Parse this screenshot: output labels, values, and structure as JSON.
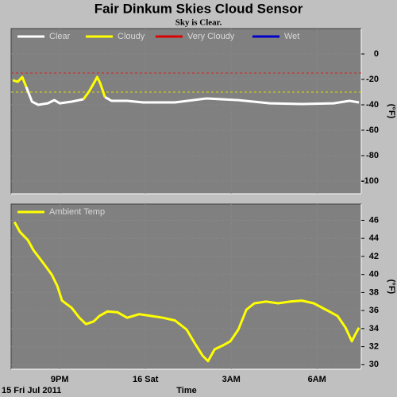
{
  "chart_data": [
    {
      "type": "line",
      "title": "Fair Dinkum Skies Cloud Sensor",
      "subtitle": "Sky is Clear.",
      "ylabel": "(°F)",
      "x": [
        19.36,
        19.53,
        19.69,
        19.83,
        20.03,
        20.25,
        20.58,
        20.81,
        21.0,
        21.42,
        21.83,
        22.03,
        22.19,
        22.31,
        22.42,
        22.58,
        22.81,
        23.36,
        23.92,
        25.03,
        26.14,
        27.25,
        28.36,
        29.47,
        30.58,
        31.14,
        31.47
      ],
      "series": [
        {
          "name": "Clear",
          "color": "#ffffff",
          "values": [
            null,
            null,
            null,
            -26,
            -37.5,
            -40,
            -38.8,
            -36.3,
            -38.8,
            -37.5,
            -35.6,
            null,
            null,
            null,
            null,
            -33.8,
            -36.9,
            -36.9,
            -38.1,
            -38.1,
            -35,
            -36.3,
            -38.8,
            -39.4,
            -38.8,
            -36.9,
            -38.1
          ]
        },
        {
          "name": "Cloudy",
          "color": "#ffff00",
          "values": [
            -20.6,
            -21.9,
            -18.1,
            -26,
            null,
            null,
            null,
            null,
            null,
            null,
            -35.6,
            -29.4,
            -23.1,
            -18.1,
            -23.1,
            -33.8,
            null,
            null,
            null,
            null,
            null,
            null,
            null,
            null,
            null,
            null,
            null
          ]
        },
        {
          "name": "Very Cloudy",
          "color": "#dd0000",
          "values": [
            null,
            null,
            null,
            null,
            null,
            null,
            null,
            null,
            null,
            null,
            null,
            null,
            null,
            null,
            null,
            null,
            null,
            null,
            null,
            null,
            null,
            null,
            null,
            null,
            null,
            null,
            null
          ]
        },
        {
          "name": "Wet",
          "color": "#0000cc",
          "values": [
            null,
            null,
            null,
            null,
            null,
            null,
            null,
            null,
            null,
            null,
            null,
            null,
            null,
            null,
            null,
            null,
            null,
            null,
            null,
            null,
            null,
            null,
            null,
            null,
            null,
            null,
            null
          ]
        }
      ],
      "thresholds": [
        {
          "value": -15,
          "color": "#dd2222"
        },
        {
          "value": -30,
          "color": "#dddd00"
        }
      ],
      "xlim": [
        19.3,
        31.55
      ],
      "xticks": [
        21,
        24,
        27,
        30
      ],
      "ylim": [
        -110,
        20
      ],
      "yticks": [
        0,
        -20,
        -40,
        -60,
        -80,
        -100
      ],
      "grid": true
    },
    {
      "type": "line",
      "ylabel": "(°F)",
      "xlabel": "Time",
      "date_label": "15 Fri Jul 2011",
      "x": [
        19.42,
        19.61,
        19.89,
        20.08,
        20.44,
        20.72,
        20.92,
        21.08,
        21.42,
        21.69,
        21.92,
        22.19,
        22.39,
        22.67,
        23.03,
        23.36,
        23.78,
        24.19,
        24.61,
        25.03,
        25.44,
        25.72,
        26.0,
        26.19,
        26.42,
        26.69,
        26.97,
        27.25,
        27.53,
        27.81,
        28.22,
        28.64,
        29.06,
        29.47,
        29.89,
        30.31,
        30.72,
        31.0,
        31.22,
        31.33,
        31.47
      ],
      "series": [
        {
          "name": "Ambient Temp",
          "color": "#ffff00",
          "values": [
            45.8,
            44.7,
            43.8,
            42.7,
            41.2,
            40.0,
            38.7,
            37.1,
            36.3,
            35.2,
            34.5,
            34.8,
            35.4,
            35.9,
            35.8,
            35.2,
            35.6,
            35.4,
            35.2,
            34.9,
            33.9,
            32.4,
            31.0,
            30.4,
            31.7,
            32.1,
            32.6,
            33.9,
            36.1,
            36.8,
            37.0,
            36.8,
            37.0,
            37.1,
            36.8,
            36.1,
            35.4,
            34.1,
            32.6,
            33.3,
            34.1
          ]
        }
      ],
      "xlim": [
        19.3,
        31.55
      ],
      "xticks": [
        {
          "value": 21,
          "label": "9PM"
        },
        {
          "value": 24,
          "label": "16 Sat"
        },
        {
          "value": 27,
          "label": "3AM"
        },
        {
          "value": 30,
          "label": "6AM"
        }
      ],
      "ylim": [
        29.5,
        47.8
      ],
      "yticks": [
        30,
        32,
        34,
        36,
        38,
        40,
        42,
        44,
        46
      ],
      "grid": true
    }
  ]
}
